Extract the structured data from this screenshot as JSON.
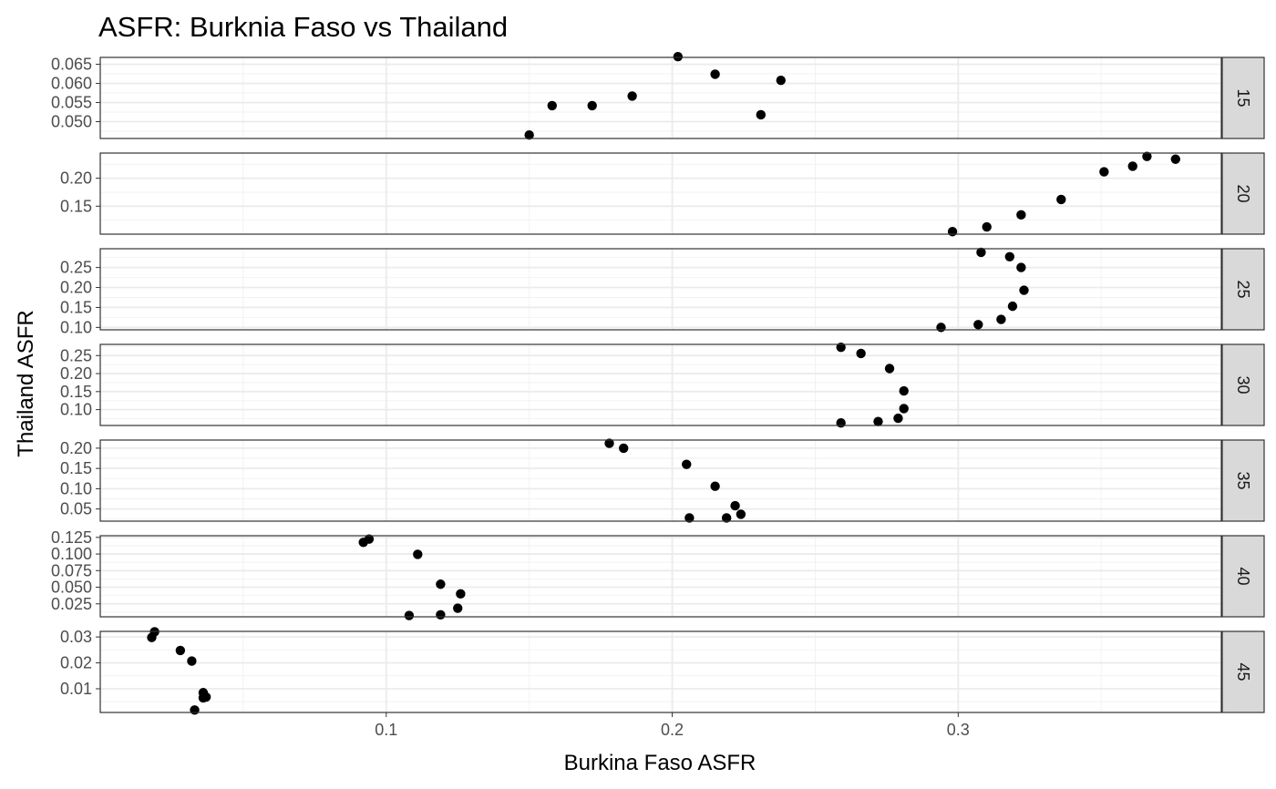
{
  "chart_data": {
    "type": "scatter",
    "title": "ASFR: Burknia Faso vs Thailand",
    "xlabel": "Burkina Faso ASFR",
    "ylabel": "Thailand ASFR",
    "xlim": [
      0.0,
      0.392
    ],
    "x_ticks": [
      0.1,
      0.2,
      0.3
    ],
    "x_tick_labels": [
      "0.1",
      "0.2",
      "0.3"
    ],
    "facet_by": "age group",
    "strip_position": "right",
    "grid": true,
    "point_color": "#000000",
    "panel_border_color": "#333333",
    "strip_fill": "#d9d9d9",
    "grid_color": "#ebebeb",
    "panels": [
      {
        "label": "15",
        "ylim": [
          0.0456,
          0.0668
        ],
        "y_ticks": [
          0.05,
          0.055,
          0.06,
          0.065
        ],
        "y_tick_labels": [
          "0.050",
          "0.055",
          "0.060",
          "0.065"
        ],
        "points": [
          {
            "x": 0.15,
            "y": 0.0465
          },
          {
            "x": 0.158,
            "y": 0.0542
          },
          {
            "x": 0.172,
            "y": 0.0542
          },
          {
            "x": 0.186,
            "y": 0.0567
          },
          {
            "x": 0.202,
            "y": 0.067
          },
          {
            "x": 0.215,
            "y": 0.0624
          },
          {
            "x": 0.231,
            "y": 0.0518
          },
          {
            "x": 0.238,
            "y": 0.0608
          }
        ]
      },
      {
        "label": "20",
        "ylim": [
          0.1,
          0.245
        ],
        "y_ticks": [
          0.15,
          0.2
        ],
        "y_tick_labels": [
          "0.15",
          "0.20"
        ],
        "points": [
          {
            "x": 0.298,
            "y": 0.1045
          },
          {
            "x": 0.31,
            "y": 0.113
          },
          {
            "x": 0.322,
            "y": 0.1345
          },
          {
            "x": 0.336,
            "y": 0.162
          },
          {
            "x": 0.351,
            "y": 0.2115
          },
          {
            "x": 0.361,
            "y": 0.2215
          },
          {
            "x": 0.366,
            "y": 0.239
          },
          {
            "x": 0.376,
            "y": 0.234
          }
        ]
      },
      {
        "label": "25",
        "ylim": [
          0.094,
          0.297
        ],
        "y_ticks": [
          0.1,
          0.15,
          0.2,
          0.25
        ],
        "y_tick_labels": [
          "0.10",
          "0.15",
          "0.20",
          "0.25"
        ],
        "points": [
          {
            "x": 0.294,
            "y": 0.1
          },
          {
            "x": 0.307,
            "y": 0.107
          },
          {
            "x": 0.315,
            "y": 0.12
          },
          {
            "x": 0.319,
            "y": 0.153
          },
          {
            "x": 0.323,
            "y": 0.193
          },
          {
            "x": 0.322,
            "y": 0.25
          },
          {
            "x": 0.318,
            "y": 0.277
          },
          {
            "x": 0.308,
            "y": 0.288
          }
        ]
      },
      {
        "label": "30",
        "ylim": [
          0.056,
          0.281
        ],
        "y_ticks": [
          0.1,
          0.15,
          0.2,
          0.25
        ],
        "y_tick_labels": [
          "0.10",
          "0.15",
          "0.20",
          "0.25"
        ],
        "points": [
          {
            "x": 0.259,
            "y": 0.063
          },
          {
            "x": 0.272,
            "y": 0.067
          },
          {
            "x": 0.279,
            "y": 0.076
          },
          {
            "x": 0.281,
            "y": 0.103
          },
          {
            "x": 0.281,
            "y": 0.152
          },
          {
            "x": 0.276,
            "y": 0.214
          },
          {
            "x": 0.266,
            "y": 0.256
          },
          {
            "x": 0.259,
            "y": 0.273
          }
        ]
      },
      {
        "label": "35",
        "ylim": [
          0.02,
          0.22
        ],
        "y_ticks": [
          0.05,
          0.1,
          0.15,
          0.2
        ],
        "y_tick_labels": [
          "0.05",
          "0.10",
          "0.15",
          "0.20"
        ],
        "points": [
          {
            "x": 0.206,
            "y": 0.028
          },
          {
            "x": 0.219,
            "y": 0.028
          },
          {
            "x": 0.224,
            "y": 0.037
          },
          {
            "x": 0.222,
            "y": 0.058
          },
          {
            "x": 0.215,
            "y": 0.106
          },
          {
            "x": 0.205,
            "y": 0.16
          },
          {
            "x": 0.183,
            "y": 0.2
          },
          {
            "x": 0.178,
            "y": 0.212
          }
        ]
      },
      {
        "label": "40",
        "ylim": [
          0.0055,
          0.1275
        ],
        "y_ticks": [
          0.025,
          0.05,
          0.075,
          0.1,
          0.125
        ],
        "y_tick_labels": [
          "0.025",
          "0.050",
          "0.075",
          "0.100",
          "0.125"
        ],
        "points": [
          {
            "x": 0.108,
            "y": 0.0075
          },
          {
            "x": 0.119,
            "y": 0.0085
          },
          {
            "x": 0.125,
            "y": 0.0185
          },
          {
            "x": 0.126,
            "y": 0.04
          },
          {
            "x": 0.119,
            "y": 0.0545
          },
          {
            "x": 0.111,
            "y": 0.0995
          },
          {
            "x": 0.094,
            "y": 0.1225
          },
          {
            "x": 0.092,
            "y": 0.1175
          }
        ]
      },
      {
        "label": "45",
        "ylim": [
          0.00085,
          0.03215
        ],
        "y_ticks": [
          0.01,
          0.02,
          0.03
        ],
        "y_tick_labels": [
          "0.01",
          "0.02",
          "0.03"
        ],
        "points": [
          {
            "x": 0.019,
            "y": 0.032
          },
          {
            "x": 0.018,
            "y": 0.0298
          },
          {
            "x": 0.028,
            "y": 0.0248
          },
          {
            "x": 0.032,
            "y": 0.0207
          },
          {
            "x": 0.036,
            "y": 0.0085
          },
          {
            "x": 0.036,
            "y": 0.0065
          },
          {
            "x": 0.037,
            "y": 0.0068
          },
          {
            "x": 0.033,
            "y": 0.0018
          }
        ]
      }
    ]
  }
}
